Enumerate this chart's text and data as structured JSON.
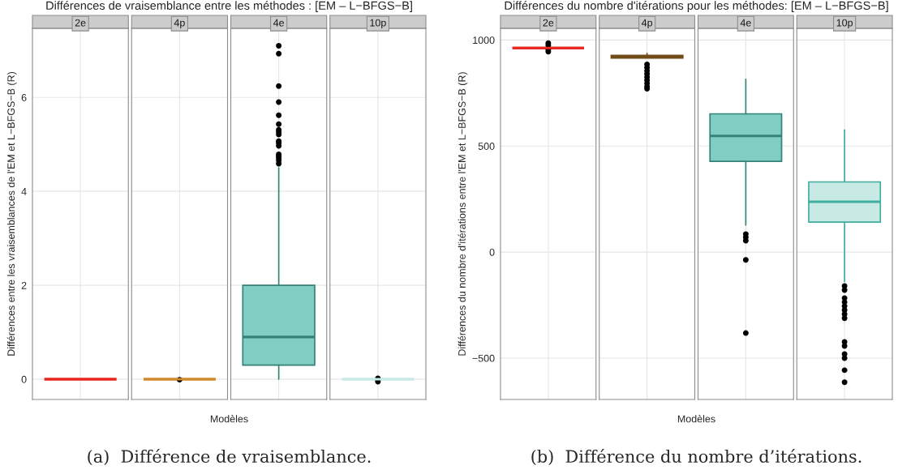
{
  "chart_data": [
    {
      "type": "box",
      "title": "Différences de vraisemblance entre les méthodes : [EM – L−BFGS−B]",
      "xlabel": "Modèles",
      "ylabel": "Différences entre les vraisemblances de l'EM et L−BFGS−B (R)",
      "categories": [
        "2e",
        "4p",
        "4e",
        "10p"
      ],
      "colors": [
        "#e8251f",
        "#d08a2c",
        "#80cdc1",
        "#c7eae5"
      ],
      "boxes": [
        {
          "low": 0,
          "q1": 0,
          "median": 0,
          "q3": 0,
          "high": 0
        },
        {
          "low": 0,
          "q1": 0,
          "median": 0,
          "q3": 0,
          "high": 0,
          "outliers": [
            -0.01
          ]
        },
        {
          "low": 0,
          "q1": 0.3,
          "median": 0.9,
          "q3": 2.0,
          "high": 4.5,
          "outliers": [
            7.1,
            6.93,
            6.24,
            5.9,
            5.62,
            5.43,
            5.31,
            5.26,
            5.21,
            5.07,
            5.03,
            4.97,
            4.79,
            4.75,
            4.71,
            4.66,
            4.59
          ]
        },
        {
          "low": 0,
          "q1": 0,
          "median": 0,
          "q3": 0,
          "high": 0,
          "outliers": [
            0.02,
            -0.02,
            -0.05
          ]
        }
      ],
      "ylim": [
        -0.43,
        7.47
      ],
      "yticks": [
        0,
        2,
        4,
        6
      ],
      "grid": true,
      "tick_labels": "y",
      "annotations": [
        "(a)  Différence de vraisemblance."
      ]
    },
    {
      "type": "box",
      "title": "Différences du nombre d'itérations pour les méthodes: [EM – L−BFGS−B]",
      "xlabel": "Modèles",
      "ylabel": "Différences du nombre d'itérations entre l'EM et L−BFGS−B (R)",
      "categories": [
        "2e",
        "4p",
        "4e",
        "10p"
      ],
      "colors": [
        "#e8251f",
        "#d08a2c",
        "#80cdc1",
        "#c7eae5"
      ],
      "boxes": [
        {
          "low": 962,
          "q1": 962,
          "median": 962,
          "q3": 962,
          "high": 962,
          "outliers": [
            985,
            975,
            955,
            945
          ]
        },
        {
          "low": 915,
          "q1": 915,
          "median": 920,
          "q3": 928,
          "high": 937,
          "outliers": [
            885,
            870,
            855,
            840,
            825,
            810,
            795,
            780,
            770
          ]
        },
        {
          "low": 127,
          "q1": 428,
          "median": 548,
          "q3": 652,
          "high": 815,
          "outliers": [
            85,
            70,
            54,
            -37,
            -382
          ]
        },
        {
          "low": -140,
          "q1": 141,
          "median": 237,
          "q3": 331,
          "high": 576,
          "outliers": [
            -160,
            -179,
            -217,
            -236,
            -255,
            -274,
            -293,
            -312,
            -424,
            -443,
            -481,
            -500,
            -557,
            -614
          ]
        }
      ],
      "ylim": [
        -695,
        1055
      ],
      "yticks": [
        {
          "value": -500,
          "label": "−500"
        },
        0,
        500,
        1000
      ],
      "grid": true,
      "tick_labels": "y",
      "annotations": [
        "(b)  Différence du nombre d’itérations."
      ]
    }
  ]
}
